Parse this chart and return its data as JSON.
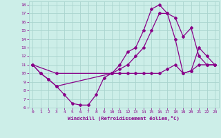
{
  "xlabel": "Windchill (Refroidissement éolien,°C)",
  "background_color": "#cceee8",
  "grid_color": "#aad4ce",
  "line_color": "#880088",
  "xlim": [
    -0.5,
    23.5
  ],
  "ylim": [
    6,
    18.4
  ],
  "xticks": [
    0,
    1,
    2,
    3,
    4,
    5,
    6,
    7,
    8,
    9,
    10,
    11,
    12,
    13,
    14,
    15,
    16,
    17,
    18,
    19,
    20,
    21,
    22,
    23
  ],
  "yticks": [
    6,
    7,
    8,
    9,
    10,
    11,
    12,
    13,
    14,
    15,
    16,
    17,
    18
  ],
  "line1_x": [
    0,
    1,
    2,
    3,
    4,
    5,
    6,
    7,
    8,
    9,
    10,
    11,
    12,
    13,
    14,
    15,
    16,
    17,
    18,
    19,
    20,
    21,
    22,
    23
  ],
  "line1_y": [
    11,
    10,
    9.3,
    8.5,
    7.5,
    6.5,
    6.3,
    6.3,
    7.5,
    9.5,
    10,
    10,
    10,
    10,
    10,
    10,
    10,
    10.5,
    11,
    10,
    10.3,
    11,
    11,
    11
  ],
  "line2_x": [
    0,
    1,
    2,
    3,
    10,
    11,
    12,
    13,
    14,
    15,
    16,
    17,
    18,
    19,
    20,
    21,
    22,
    23
  ],
  "line2_y": [
    11,
    10,
    9.3,
    8.5,
    10,
    10.5,
    11,
    12,
    13,
    15,
    17,
    17,
    16.5,
    14.3,
    15.3,
    12,
    11,
    11
  ],
  "line3_x": [
    0,
    3,
    10,
    11,
    12,
    13,
    14,
    15,
    16,
    17,
    18,
    19,
    20,
    21,
    22,
    23
  ],
  "line3_y": [
    11,
    10,
    10,
    11,
    12.5,
    13,
    15,
    17.5,
    18,
    17,
    14,
    10,
    10.3,
    13,
    12,
    11
  ]
}
